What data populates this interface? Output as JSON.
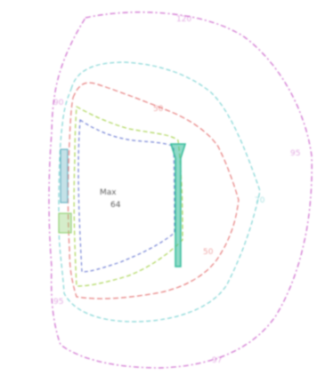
{
  "diagram": {
    "colors": {
      "outer": "#cc66cc",
      "cyan": "#66cccc",
      "red": "#e06060",
      "yellow_green": "#99cc33",
      "blue": "#5566cc",
      "target_green": "#33bb99",
      "left_band": "#55aabb",
      "left_green": "#88cc66"
    },
    "contours": [
      {
        "id": "outer",
        "color_key": "outer",
        "labels": [
          "120",
          "90",
          "95",
          "97",
          "95"
        ]
      },
      {
        "id": "cyan",
        "color_key": "cyan",
        "labels": [
          "70"
        ]
      },
      {
        "id": "red",
        "color_key": "red",
        "labels": [
          "50",
          "50"
        ]
      },
      {
        "id": "yellow-green",
        "color_key": "yellow_green",
        "labels": []
      },
      {
        "id": "blue",
        "color_key": "blue",
        "labels": []
      }
    ],
    "center_text": [
      "Max",
      "64"
    ]
  }
}
